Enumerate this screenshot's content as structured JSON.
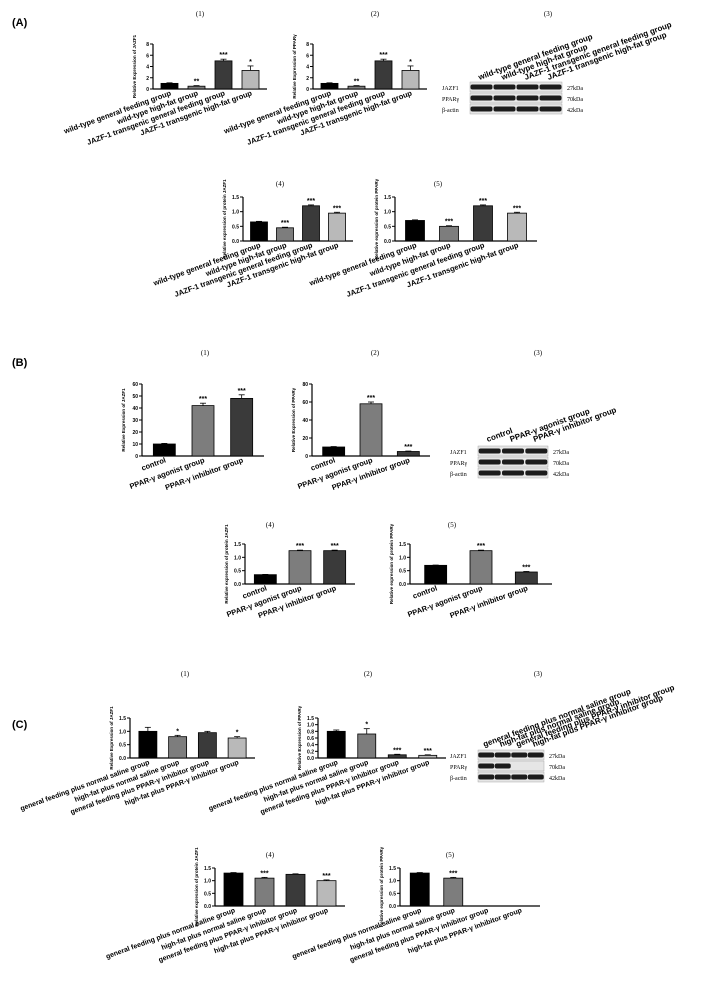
{
  "colors": {
    "bar": [
      "#000000",
      "#7d7d7d",
      "#3a3a3a",
      "#b9b9b9"
    ]
  },
  "panels": [
    {
      "label": "(A)",
      "blot": {
        "num": "(3)",
        "lanes": [
          "wild-type general feeding group",
          "wild-type high-fat group",
          "JAZF-1 transgenic general feeding group",
          "JAZF-1 transgenic high-fat group"
        ],
        "rows": [
          {
            "name": "JAZF1",
            "size": "27kDa",
            "present": [
              1,
              1,
              1,
              1
            ]
          },
          {
            "name": "PPARγ",
            "size": "70kDa",
            "present": [
              1,
              1,
              1,
              1
            ]
          },
          {
            "name": "β-actin",
            "size": "42kDa",
            "present": [
              1,
              1,
              1,
              1
            ]
          }
        ]
      }
    },
    {
      "label": "(B)",
      "blot": {
        "num": "(3)",
        "lanes": [
          "control",
          "PPAR-γ agonist group",
          "PPAR-γ inhibitor group"
        ],
        "rows": [
          {
            "name": "JAZF1",
            "size": "27kDa",
            "present": [
              1,
              1,
              1
            ]
          },
          {
            "name": "PPARγ",
            "size": "70kDa",
            "present": [
              1,
              1,
              1
            ]
          },
          {
            "name": "β-actin",
            "size": "42kDa",
            "present": [
              1,
              1,
              1
            ]
          }
        ]
      }
    },
    {
      "label": "(C)",
      "blot": {
        "num": "(3)",
        "lanes": [
          "general feeding plus normal saline group",
          "high-fat plus normal saline group",
          "general feeding plus PPAR-γ inhibitor group",
          "high-fat plus PPAR-γ inhibitor group"
        ],
        "rows": [
          {
            "name": "JAZF1",
            "size": "27kDa",
            "present": [
              1,
              1,
              1,
              1
            ]
          },
          {
            "name": "PPARγ",
            "size": "70kDa",
            "present": [
              1,
              1,
              0,
              0
            ]
          },
          {
            "name": "β-actin",
            "size": "42kDa",
            "present": [
              1,
              1,
              1,
              1
            ]
          }
        ]
      }
    }
  ],
  "chart_data": [
    {
      "id": "A1",
      "num": "(1)",
      "type": "bar",
      "ylabel": "Relative Expression of JAZF1",
      "ylim": [
        0,
        8
      ],
      "yticks": [
        "0",
        "2",
        "4",
        "6",
        "8"
      ],
      "categories": [
        "wild-type general feeding group",
        "wild-type high-fat group",
        "JAZF-1 transgenic general feeding group",
        "JAZF-1 transgenic high-fat group"
      ],
      "values": [
        1.0,
        0.5,
        5.0,
        3.3
      ],
      "errors": [
        0.1,
        0.1,
        0.3,
        0.8
      ],
      "sig": [
        "",
        "**",
        "***",
        "*"
      ]
    },
    {
      "id": "A2",
      "num": "(2)",
      "type": "bar",
      "ylabel": "Relative Expression of PPARγ",
      "ylim": [
        0,
        8
      ],
      "yticks": [
        "0",
        "2",
        "4",
        "6",
        "8"
      ],
      "categories": [
        "wild-type general feeding group",
        "wild-type high-fat group",
        "JAZF-1 transgenic general feeding group",
        "JAZF-1 transgenic high-fat group"
      ],
      "values": [
        1.0,
        0.5,
        5.0,
        3.3
      ],
      "errors": [
        0.1,
        0.1,
        0.3,
        0.8
      ],
      "sig": [
        "",
        "**",
        "***",
        "*"
      ]
    },
    {
      "id": "A4",
      "num": "(4)",
      "type": "bar",
      "ylabel": "Relative expression of protein JAZF1",
      "ylim": [
        0,
        1.5
      ],
      "yticks": [
        "0.0",
        "0.5",
        "1.0",
        "1.5"
      ],
      "categories": [
        "wild-type general feeding group",
        "wild-type high-fat group",
        "JAZF-1 transgenic general feeding group",
        "JAZF-1 transgenic high-fat group"
      ],
      "values": [
        0.65,
        0.45,
        1.2,
        0.95
      ],
      "errors": [
        0.02,
        0.02,
        0.03,
        0.03
      ],
      "sig": [
        "",
        "***",
        "***",
        "***"
      ]
    },
    {
      "id": "A5",
      "num": "(5)",
      "type": "bar",
      "ylabel": "Relative expression of protein PPARγ",
      "ylim": [
        0,
        1.5
      ],
      "yticks": [
        "0.0",
        "0.5",
        "1.0",
        "1.5"
      ],
      "categories": [
        "wild-type general feeding group",
        "wild-type high-fat group",
        "JAZF-1 transgenic general feeding group",
        "JAZF-1 transgenic high-fat group"
      ],
      "values": [
        0.7,
        0.5,
        1.2,
        0.95
      ],
      "errors": [
        0.02,
        0.02,
        0.03,
        0.03
      ],
      "sig": [
        "",
        "***",
        "***",
        "***"
      ]
    },
    {
      "id": "B1",
      "num": "(1)",
      "type": "bar",
      "ylabel": "Relative Expression of JAZF1",
      "ylim": [
        0,
        60
      ],
      "yticks": [
        "0",
        "10",
        "20",
        "30",
        "40",
        "50",
        "60"
      ],
      "categories": [
        "control",
        "PPAR-γ agonist group",
        "PPAR-γ inhibitor group"
      ],
      "values": [
        10,
        42,
        48
      ],
      "errors": [
        0.5,
        2,
        3
      ],
      "sig": [
        "",
        "***",
        "***"
      ]
    },
    {
      "id": "B2",
      "num": "(2)",
      "type": "bar",
      "ylabel": "Relative Expression of PPARγ",
      "ylim": [
        0,
        80
      ],
      "yticks": [
        "0",
        "20",
        "40",
        "60",
        "80"
      ],
      "categories": [
        "control",
        "PPAR-γ agonist group",
        "PPAR-γ inhibitor group"
      ],
      "values": [
        10,
        58,
        5
      ],
      "errors": [
        0.5,
        2,
        0.5
      ],
      "sig": [
        "",
        "***",
        "***"
      ]
    },
    {
      "id": "B4",
      "num": "(4)",
      "type": "bar",
      "ylabel": "Relative expression of protein JAZF1",
      "ylim": [
        0,
        1.5
      ],
      "yticks": [
        "0.0",
        "0.5",
        "1.0",
        "1.5"
      ],
      "categories": [
        "control",
        "PPAR-γ agonist group",
        "PPAR-γ inhibitor group"
      ],
      "values": [
        0.35,
        1.25,
        1.25
      ],
      "errors": [
        0.01,
        0.02,
        0.02
      ],
      "sig": [
        "",
        "***",
        "***"
      ]
    },
    {
      "id": "B5",
      "num": "(5)",
      "type": "bar",
      "ylabel": "Relative expression of protein PPARγ",
      "ylim": [
        0,
        1.5
      ],
      "yticks": [
        "0.0",
        "0.5",
        "1.0",
        "1.5"
      ],
      "categories": [
        "control",
        "PPAR-γ agonist group",
        "PPAR-γ inhibitor group"
      ],
      "values": [
        0.7,
        1.25,
        0.45
      ],
      "errors": [
        0.01,
        0.02,
        0.02
      ],
      "sig": [
        "",
        "***",
        "***"
      ]
    },
    {
      "id": "C1",
      "num": "(1)",
      "type": "bar",
      "ylabel": "Relative Expression of JAZF1",
      "ylim": [
        0,
        1.5
      ],
      "yticks": [
        "0.0",
        "0.5",
        "1.0",
        "1.5"
      ],
      "categories": [
        "general feeding plus normal saline group",
        "high-fat plus normal saline group",
        "general feeding plus PPAR-γ inhibitor group",
        "high-fat plus PPAR-γ inhibitor group"
      ],
      "values": [
        1.0,
        0.8,
        0.95,
        0.75
      ],
      "errors": [
        0.15,
        0.05,
        0.05,
        0.05
      ],
      "sig": [
        "",
        "*",
        "",
        "*"
      ]
    },
    {
      "id": "C2",
      "num": "(2)",
      "type": "bar",
      "ylabel": "Relative Expression of PPARγ",
      "ylim": [
        0,
        1.5
      ],
      "yticks": [
        "0.0",
        "0.2",
        "0.4",
        "0.6",
        "0.8",
        "1.0",
        "1.5"
      ],
      "categories": [
        "general feeding plus normal saline group",
        "high-fat plus normal saline group",
        "general feeding plus PPAR-γ inhibitor group",
        "high-fat plus PPAR-γ inhibitor group"
      ],
      "values": [
        1.0,
        0.9,
        0.12,
        0.1
      ],
      "errors": [
        0.05,
        0.2,
        0.02,
        0.02
      ],
      "sig": [
        "",
        "*",
        "***",
        "***"
      ]
    },
    {
      "id": "C4",
      "num": "(4)",
      "type": "bar",
      "ylabel": "Relative expression of protein JAZF1",
      "ylim": [
        0,
        1.5
      ],
      "yticks": [
        "0.0",
        "0.5",
        "1.0",
        "1.5"
      ],
      "categories": [
        "general feeding plus normal saline group",
        "high-fat plus normal saline group",
        "general feeding plus PPAR-γ inhibitor group",
        "high-fat plus PPAR-γ inhibitor group"
      ],
      "values": [
        1.3,
        1.1,
        1.25,
        1.0
      ],
      "errors": [
        0.02,
        0.03,
        0.02,
        0.03
      ],
      "sig": [
        "",
        "***",
        "",
        "***"
      ]
    },
    {
      "id": "C5",
      "num": "(5)",
      "type": "bar",
      "ylabel": "Relative expression of protein PPARγ",
      "ylim": [
        0,
        1.5
      ],
      "yticks": [
        "0.0",
        "0.5",
        "1.0",
        "1.5"
      ],
      "categories": [
        "general feeding plus normal saline group",
        "high-fat plus normal saline group",
        "general feeding plus PPAR-γ inhibitor group",
        "high-fat plus PPAR-γ inhibitor group"
      ],
      "values": [
        1.3,
        1.1,
        0,
        0
      ],
      "errors": [
        0.02,
        0.03,
        0,
        0
      ],
      "sig": [
        "",
        "***",
        "",
        ""
      ]
    }
  ]
}
